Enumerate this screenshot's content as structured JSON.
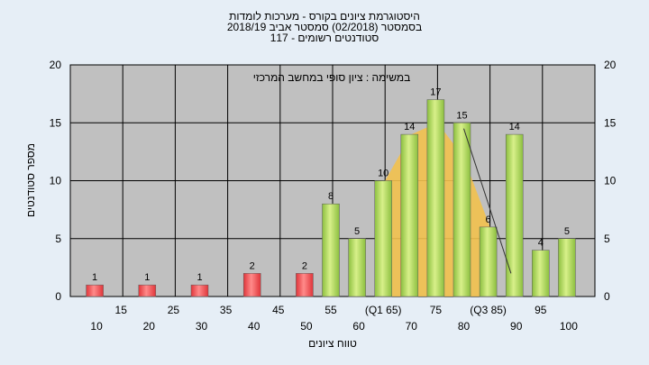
{
  "titles": [
    "היסטוגרמת ציונים בקורס - מערכות לומדות",
    "בסמסטר  (02/2018)  סמסטר אביב 2018/19",
    "סטודנטים רשומים - 117"
  ],
  "annotation": "במשימה : ציון סופי במחשב המרכזי",
  "colors": {
    "plot_bg": "#c0c0c0",
    "grid": "#000000",
    "fail_bar": "#e0353a",
    "pass_bar": "#8cbf3f",
    "curve_fill": "#f2c14e",
    "page_bg": "#e6eef6"
  },
  "chart_data": {
    "type": "bar",
    "xlabel": "טווח ציונים",
    "ylabel": "מספר סטודנטים",
    "ylim": [
      0,
      20
    ],
    "yticks": [
      0,
      5,
      10,
      15,
      20
    ],
    "grid": true,
    "x_tick_labels_lower": [
      "10",
      "20",
      "30",
      "40",
      "50",
      "60",
      "70",
      "80",
      "90",
      "100"
    ],
    "x_tick_labels_upper": [
      "15",
      "25",
      "35",
      "45",
      "55",
      "(Q1 65)",
      "75",
      "(Q3 85)",
      "95"
    ],
    "categories": [
      "10",
      "20",
      "30",
      "40",
      "50",
      "55",
      "60",
      "65",
      "70",
      "75",
      "80",
      "85",
      "90",
      "95",
      "100"
    ],
    "values": [
      1,
      1,
      1,
      2,
      2,
      8,
      5,
      10,
      14,
      17,
      15,
      6,
      14,
      4,
      5
    ],
    "bar_groups": [
      "fail",
      "fail",
      "fail",
      "fail",
      "fail",
      "pass",
      "pass",
      "pass",
      "pass",
      "pass",
      "pass",
      "pass",
      "pass",
      "pass",
      "pass"
    ],
    "distribution_curve": {
      "x": [
        65,
        70,
        75,
        80,
        85
      ],
      "y": [
        10,
        14,
        15,
        12,
        6
      ]
    }
  }
}
